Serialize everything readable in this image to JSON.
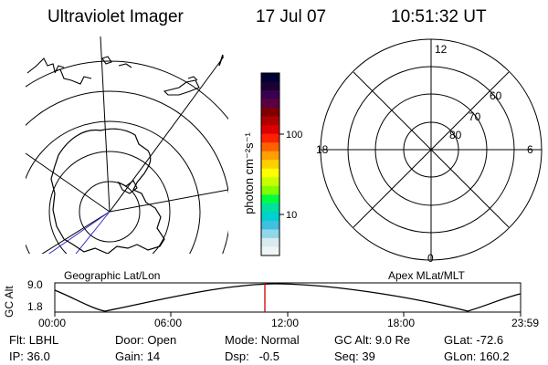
{
  "header": {
    "instrument": "Ultraviolet Imager",
    "date": "17 Jul 07",
    "time": "10:51:32 UT"
  },
  "geo_map": {
    "label": "Geographic Lat/Lon"
  },
  "apex_map": {
    "label": "Apex MLat/MLT",
    "mlt_labels": [
      "12",
      "18",
      "6",
      "0"
    ],
    "mlat_labels": [
      "60",
      "70",
      "80"
    ]
  },
  "colorbar": {
    "unit_label": "photon cm⁻²s⁻¹",
    "tick_labels": [
      "100",
      "10"
    ],
    "colors": [
      "#000033",
      "#1a0033",
      "#3a0050",
      "#5a0040",
      "#800000",
      "#b00000",
      "#dd0000",
      "#ff2000",
      "#ff6000",
      "#ffa000",
      "#ffd000",
      "#ffff00",
      "#c8ff00",
      "#80ff00",
      "#00ff40",
      "#00e0a0",
      "#00d0d0",
      "#40c0e0",
      "#90d8e8",
      "#d8ecf0",
      "#f0f4f6"
    ]
  },
  "altitude_plot": {
    "ylabel": "GC Alt",
    "y_ticks": [
      "9.0",
      "1.8"
    ],
    "x_ticks": [
      "00:00",
      "06:00",
      "12:00",
      "18:00",
      "23:59"
    ],
    "current_marker_color": "#cc0000"
  },
  "status": {
    "row1": [
      {
        "label": "Flt:",
        "value": "LBHL"
      },
      {
        "label": "Door:",
        "value": "Open"
      },
      {
        "label": "Mode:",
        "value": "Normal"
      },
      {
        "label": "GC Alt:",
        "value": "9.0 Re"
      },
      {
        "label": "GLat:",
        "value": "-72.6"
      }
    ],
    "row2": [
      {
        "label": "IP:",
        "value": "36.0"
      },
      {
        "label": "Gain:",
        "value": "14"
      },
      {
        "label": "Dsp:",
        "value": "-0.5"
      },
      {
        "label": "Seq:",
        "value": "39"
      },
      {
        "label": "GLon:",
        "value": "160.2"
      }
    ]
  }
}
